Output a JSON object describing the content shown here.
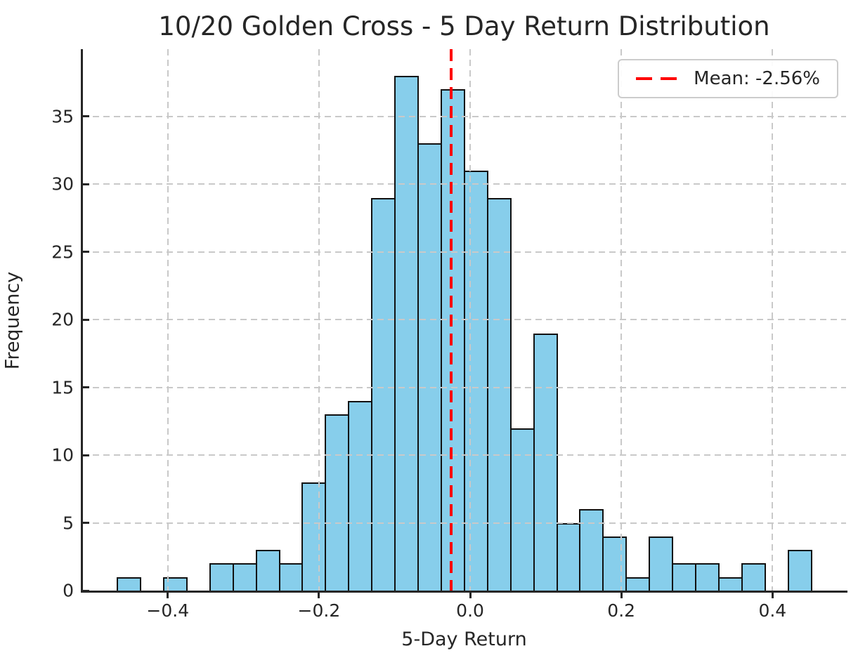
{
  "title": "10/20 Golden Cross - 5 Day Return Distribution",
  "legend": {
    "label": "Mean: -2.56%",
    "position": "upper right"
  },
  "chart_data": {
    "type": "bar",
    "subtype": "histogram",
    "title": "10/20 Golden Cross - 5 Day Return Distribution",
    "xlabel": "5-Day Return",
    "ylabel": "Frequency",
    "bin_start": -0.4675,
    "bin_width": 0.0306,
    "counts": [
      1,
      0,
      1,
      0,
      2,
      2,
      3,
      2,
      8,
      13,
      14,
      29,
      38,
      33,
      37,
      31,
      29,
      12,
      19,
      5,
      6,
      4,
      1,
      4,
      2,
      2,
      1,
      2,
      0,
      3
    ],
    "mean_value": -0.0256,
    "mean_label": "Mean: -2.56%",
    "xlim": [
      -0.5132,
      0.4973
    ],
    "ylim": [
      0,
      39.97
    ],
    "xticks": [
      {
        "value": -0.4,
        "label": "−0.4"
      },
      {
        "value": -0.2,
        "label": "−0.2"
      },
      {
        "value": 0.0,
        "label": "0.0"
      },
      {
        "value": 0.2,
        "label": "0.2"
      },
      {
        "value": 0.4,
        "label": "0.4"
      }
    ],
    "yticks": [
      {
        "value": 0,
        "label": "0"
      },
      {
        "value": 5,
        "label": "5"
      },
      {
        "value": 10,
        "label": "10"
      },
      {
        "value": 15,
        "label": "15"
      },
      {
        "value": 20,
        "label": "20"
      },
      {
        "value": 25,
        "label": "25"
      },
      {
        "value": 30,
        "label": "30"
      },
      {
        "value": 35,
        "label": "35"
      }
    ],
    "grid": true,
    "colors": {
      "bar_fill": "#87CEEB",
      "bar_edge": "#111111",
      "mean_line": "#ff0000",
      "grid": "#c9c9c9",
      "axis": "#262626",
      "text": "#262626",
      "legend_border": "#cccccc"
    }
  }
}
